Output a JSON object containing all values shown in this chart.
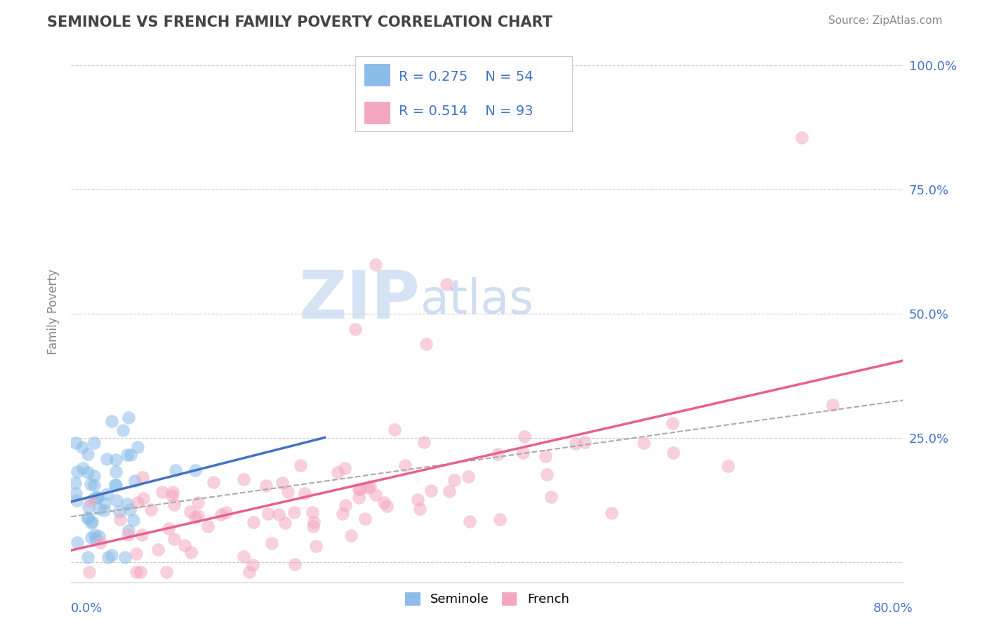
{
  "title": "SEMINOLE VS FRENCH FAMILY POVERTY CORRELATION CHART",
  "source": "Source: ZipAtlas.com",
  "ylabel": "Family Poverty",
  "seminole_R": 0.275,
  "seminole_N": 54,
  "french_R": 0.514,
  "french_N": 93,
  "seminole_color": "#8bbde8",
  "french_color": "#f4a8c0",
  "seminole_line_color": "#4472c4",
  "french_line_color": "#e86090",
  "overall_line_color": "#aaaaaa",
  "background_color": "#ffffff",
  "xlim": [
    0.0,
    0.82
  ],
  "ylim": [
    -0.04,
    1.05
  ],
  "y_ticks": [
    0.0,
    0.25,
    0.5,
    0.75,
    1.0
  ],
  "y_tick_labels": [
    "",
    "25.0%",
    "50.0%",
    "75.0%",
    "100.0%"
  ],
  "watermark_zip_color": "#c8d8f0",
  "watermark_atlas_color": "#b8c8e0",
  "title_color": "#444444",
  "source_color": "#888888",
  "legend_label_color": "#4472c4",
  "axis_label_color": "#4472c4",
  "grid_color": "#cccccc"
}
